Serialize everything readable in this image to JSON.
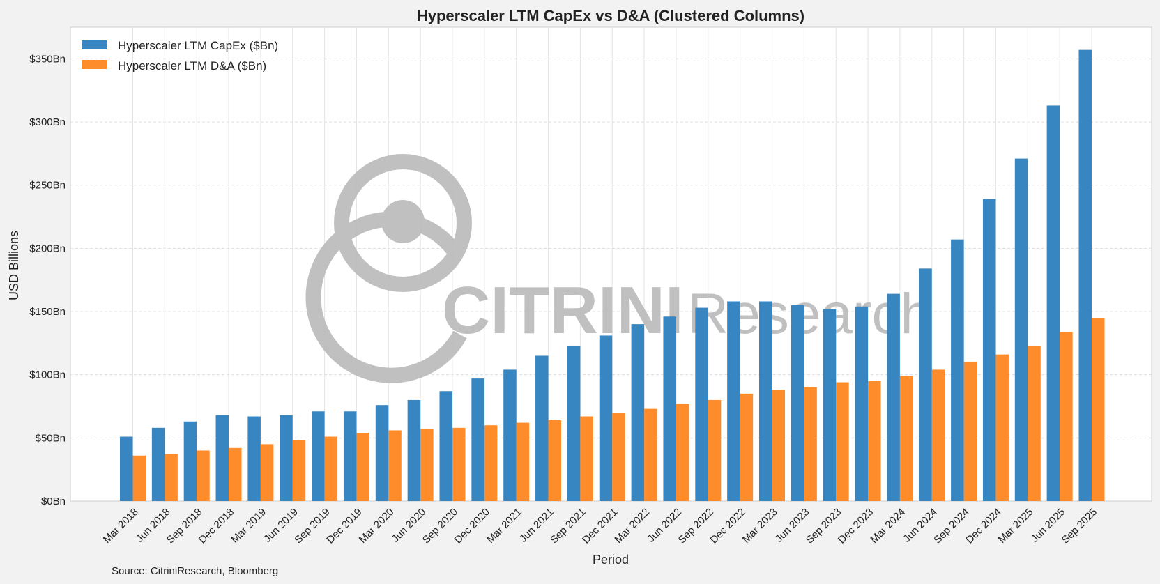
{
  "chart_data": {
    "type": "bar",
    "title": "Hyperscaler LTM CapEx vs D&A (Clustered Columns)",
    "xlabel": "Period",
    "ylabel": "USD Billions",
    "ylim": [
      0,
      375
    ],
    "yticks": [
      0,
      50,
      100,
      150,
      200,
      250,
      300,
      350
    ],
    "ytick_format_prefix": "$",
    "ytick_format_suffix": "Bn",
    "grid": true,
    "legend_position": "top-left",
    "categories": [
      "Mar 2018",
      "Jun 2018",
      "Sep 2018",
      "Dec 2018",
      "Mar 2019",
      "Jun 2019",
      "Sep 2019",
      "Dec 2019",
      "Mar 2020",
      "Jun 2020",
      "Sep 2020",
      "Dec 2020",
      "Mar 2021",
      "Jun 2021",
      "Sep 2021",
      "Dec 2021",
      "Mar 2022",
      "Jun 2022",
      "Sep 2022",
      "Dec 2022",
      "Mar 2023",
      "Jun 2023",
      "Sep 2023",
      "Dec 2023",
      "Mar 2024",
      "Jun 2024",
      "Sep 2024",
      "Dec 2024",
      "Mar 2025",
      "Jun 2025",
      "Sep 2025"
    ],
    "series": [
      {
        "name": "Hyperscaler LTM CapEx ($Bn)",
        "color": "#3786c1",
        "values": [
          51,
          58,
          63,
          68,
          67,
          68,
          71,
          71,
          76,
          80,
          87,
          97,
          104,
          115,
          123,
          131,
          140,
          146,
          153,
          158,
          158,
          155,
          152,
          154,
          164,
          184,
          207,
          239,
          271,
          313,
          357
        ]
      },
      {
        "name": "Hyperscaler LTM D&A ($Bn)",
        "color": "#ff8c2a",
        "values": [
          36,
          37,
          40,
          42,
          45,
          48,
          51,
          54,
          56,
          57,
          58,
          60,
          62,
          64,
          67,
          70,
          73,
          77,
          80,
          85,
          88,
          90,
          94,
          95,
          99,
          104,
          110,
          116,
          123,
          134,
          145
        ]
      }
    ]
  },
  "source": "Source: CitriniResearch, Bloomberg",
  "watermark": {
    "brand_bold": "CITRINI",
    "brand_light": "Research",
    "color": "#bdbdbd",
    "icon": "person-ring-logo"
  },
  "colors": {
    "background": "#f2f2f2",
    "plot_background": "#ffffff",
    "grid": "#dddddd"
  }
}
